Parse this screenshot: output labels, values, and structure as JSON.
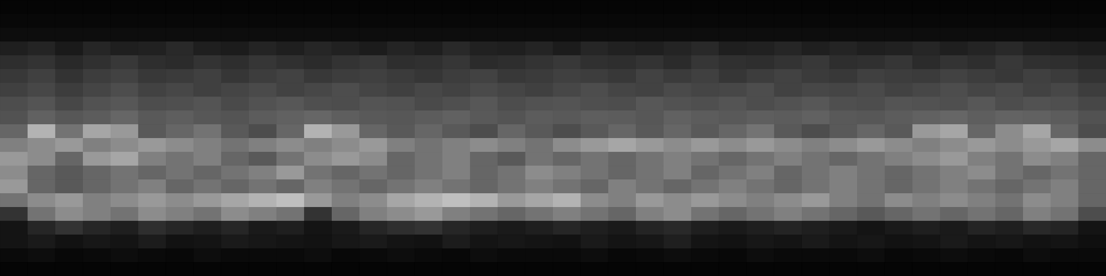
{
  "chart_data": {
    "type": "heatmap",
    "tick_labels": false,
    "grid": false,
    "zlim": [
      0,
      100
    ],
    "cells": [
      [
        2,
        2,
        2,
        2,
        2,
        2,
        2,
        2,
        2,
        2,
        2,
        2,
        2,
        2,
        2,
        2,
        2,
        2,
        2,
        2,
        2,
        2,
        2,
        2,
        2,
        2,
        2,
        2,
        2,
        2,
        2,
        2,
        2,
        2,
        2,
        2,
        2,
        2,
        2,
        2
      ],
      [
        3,
        3,
        3,
        3,
        3,
        3,
        3,
        3,
        3,
        3,
        3,
        3,
        3,
        3,
        3,
        3,
        3,
        3,
        3,
        3,
        3,
        3,
        3,
        3,
        3,
        3,
        3,
        3,
        3,
        3,
        3,
        3,
        3,
        3,
        3,
        3,
        3,
        3,
        3,
        3
      ],
      [
        5,
        5,
        5,
        5,
        5,
        5,
        5,
        5,
        5,
        5,
        5,
        5,
        5,
        5,
        5,
        5,
        5,
        5,
        5,
        5,
        5,
        5,
        5,
        5,
        5,
        5,
        5,
        5,
        5,
        5,
        5,
        5,
        5,
        5,
        5,
        5,
        5,
        5,
        5,
        5
      ],
      [
        12,
        14,
        10,
        15,
        12,
        13,
        16,
        12,
        11,
        14,
        12,
        15,
        13,
        11,
        14,
        12,
        16,
        13,
        12,
        14,
        11,
        15,
        13,
        12,
        14,
        16,
        12,
        13,
        15,
        12,
        14,
        12,
        13,
        15,
        12,
        14,
        16,
        13,
        12,
        11
      ],
      [
        18,
        20,
        16,
        19,
        22,
        18,
        17,
        20,
        18,
        21,
        19,
        17,
        20,
        22,
        18,
        19,
        21,
        17,
        18,
        20,
        22,
        19,
        18,
        20,
        17,
        21,
        19,
        18,
        20,
        22,
        18,
        19,
        21,
        17,
        20,
        18,
        22,
        19,
        18,
        16
      ],
      [
        22,
        25,
        20,
        24,
        26,
        22,
        23,
        25,
        21,
        24,
        26,
        22,
        24,
        25,
        23,
        21,
        24,
        26,
        22,
        23,
        25,
        24,
        22,
        26,
        23,
        25,
        21,
        24,
        26,
        23,
        22,
        25,
        24,
        23,
        26,
        24,
        22,
        25,
        23,
        20
      ],
      [
        25,
        28,
        24,
        27,
        30,
        26,
        28,
        25,
        27,
        29,
        26,
        28,
        30,
        27,
        25,
        28,
        26,
        29,
        27,
        25,
        28,
        30,
        27,
        26,
        29,
        27,
        28,
        30,
        26,
        28,
        27,
        29,
        26,
        28,
        30,
        27,
        29,
        26,
        28,
        24
      ],
      [
        30,
        33,
        28,
        32,
        34,
        30,
        31,
        33,
        29,
        32,
        34,
        31,
        30,
        33,
        32,
        29,
        31,
        34,
        30,
        32,
        33,
        31,
        30,
        34,
        32,
        31,
        33,
        30,
        32,
        34,
        31,
        30,
        33,
        32,
        31,
        34,
        30,
        32,
        31,
        28
      ],
      [
        32,
        38,
        34,
        36,
        40,
        35,
        37,
        34,
        33,
        36,
        38,
        40,
        37,
        35,
        34,
        36,
        38,
        35,
        33,
        36,
        35,
        37,
        36,
        34,
        38,
        36,
        35,
        37,
        36,
        38,
        35,
        34,
        36,
        38,
        40,
        37,
        39,
        38,
        36,
        32
      ],
      [
        40,
        70,
        45,
        65,
        60,
        35,
        40,
        45,
        35,
        30,
        40,
        70,
        60,
        40,
        35,
        40,
        35,
        30,
        40,
        35,
        30,
        35,
        40,
        35,
        40,
        35,
        40,
        45,
        35,
        30,
        35,
        40,
        35,
        60,
        65,
        40,
        55,
        65,
        40,
        30
      ],
      [
        50,
        55,
        60,
        50,
        55,
        60,
        55,
        50,
        45,
        50,
        55,
        50,
        55,
        60,
        50,
        45,
        50,
        55,
        50,
        45,
        55,
        60,
        65,
        60,
        55,
        60,
        55,
        60,
        55,
        50,
        55,
        60,
        55,
        50,
        55,
        60,
        55,
        60,
        65,
        55
      ],
      [
        60,
        55,
        40,
        60,
        65,
        50,
        45,
        50,
        40,
        35,
        45,
        55,
        60,
        55,
        40,
        45,
        50,
        40,
        35,
        45,
        40,
        45,
        40,
        45,
        50,
        45,
        40,
        45,
        50,
        45,
        40,
        45,
        50,
        55,
        60,
        50,
        45,
        55,
        50,
        40
      ],
      [
        55,
        40,
        35,
        40,
        45,
        40,
        45,
        40,
        45,
        50,
        60,
        45,
        40,
        45,
        40,
        45,
        50,
        40,
        45,
        55,
        50,
        45,
        40,
        45,
        50,
        40,
        45,
        50,
        40,
        45,
        50,
        45,
        40,
        45,
        50,
        55,
        45,
        40,
        45,
        40
      ],
      [
        60,
        40,
        35,
        40,
        45,
        50,
        40,
        45,
        40,
        45,
        40,
        50,
        45,
        40,
        45,
        50,
        45,
        40,
        45,
        50,
        45,
        40,
        50,
        45,
        40,
        45,
        50,
        45,
        40,
        45,
        50,
        45,
        40,
        45,
        50,
        45,
        40,
        45,
        50,
        40
      ],
      [
        45,
        55,
        60,
        50,
        55,
        60,
        55,
        60,
        65,
        70,
        75,
        60,
        50,
        55,
        65,
        70,
        75,
        70,
        60,
        65,
        70,
        55,
        50,
        60,
        55,
        60,
        55,
        50,
        55,
        60,
        50,
        45,
        55,
        50,
        55,
        50,
        45,
        55,
        50,
        40
      ],
      [
        20,
        45,
        55,
        50,
        45,
        55,
        50,
        45,
        55,
        50,
        45,
        20,
        40,
        50,
        55,
        60,
        50,
        45,
        40,
        45,
        50,
        45,
        40,
        50,
        55,
        45,
        40,
        45,
        50,
        45,
        40,
        35,
        40,
        45,
        40,
        45,
        40,
        50,
        45,
        30
      ],
      [
        8,
        15,
        20,
        15,
        12,
        18,
        15,
        12,
        15,
        10,
        12,
        8,
        10,
        15,
        18,
        20,
        15,
        12,
        10,
        12,
        15,
        12,
        10,
        14,
        16,
        12,
        10,
        12,
        14,
        12,
        10,
        8,
        10,
        12,
        10,
        14,
        12,
        16,
        14,
        8
      ],
      [
        8,
        10,
        7,
        9,
        8,
        11,
        7,
        8,
        10,
        9,
        8,
        7,
        9,
        10,
        8,
        7,
        11,
        8,
        9,
        8,
        7,
        10,
        8,
        9,
        12,
        8,
        7,
        9,
        8,
        10,
        8,
        9,
        7,
        8,
        10,
        8,
        9,
        7,
        8,
        6
      ],
      [
        4,
        5,
        3,
        4,
        5,
        4,
        3,
        5,
        4,
        4,
        4,
        5,
        3,
        4,
        5,
        4,
        3,
        5,
        4,
        4,
        4,
        5,
        3,
        4,
        5,
        4,
        3,
        5,
        4,
        4,
        4,
        5,
        3,
        4,
        5,
        4,
        3,
        5,
        4,
        4
      ],
      [
        2,
        2,
        2,
        2,
        2,
        2,
        2,
        2,
        2,
        2,
        2,
        2,
        2,
        2,
        2,
        2,
        2,
        2,
        2,
        2,
        2,
        2,
        2,
        2,
        2,
        2,
        2,
        2,
        2,
        2,
        2,
        2,
        2,
        2,
        2,
        2,
        2,
        2,
        2,
        2
      ]
    ]
  }
}
